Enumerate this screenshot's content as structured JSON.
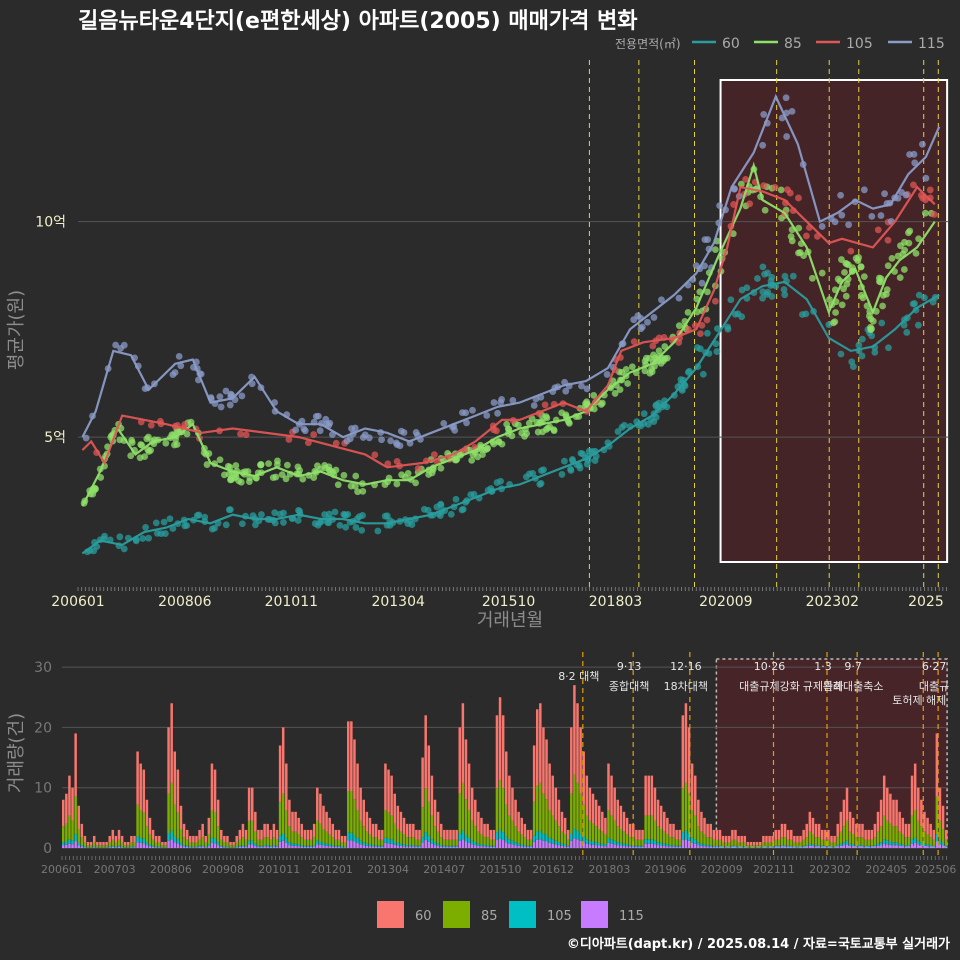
{
  "title": "길음뉴타운4단지(e편한세상) 아파트(2005) 매매가격 변화",
  "credit": "©디아파트(dapt.kr) / 2025.08.14 / 자료=국토교통부 실거래가",
  "colors": {
    "60": "#2a9d9e",
    "85": "#8fe06a",
    "105": "#e05555",
    "115": "#8a9bc8",
    "bar60": "#f8766d",
    "bar85": "#7cae00",
    "bar105": "#00bfc4",
    "bar115": "#c77cff",
    "policy": "#e6d23c",
    "highlight_fill": "#5a1f24",
    "grid": "#555555"
  },
  "chart_data": [
    {
      "type": "line",
      "ylabel": "평균가(원)",
      "xlabel": "거래년월",
      "y_ticks": [
        {
          "value": 5,
          "label": "5억"
        },
        {
          "value": 10,
          "label": "10억"
        }
      ],
      "ylim": [
        1.5,
        13.4
      ],
      "x_ticks": [
        "200601",
        "200806",
        "201011",
        "201304",
        "201510",
        "201803",
        "202009",
        "202302",
        "2025"
      ],
      "legend_title": "전용면적(㎡)",
      "series": [
        {
          "name": "60",
          "points": [
            [
              2006.1,
              2.3
            ],
            [
              2006.5,
              2.6
            ],
            [
              2007.0,
              2.5
            ],
            [
              2007.5,
              2.8
            ],
            [
              2008.0,
              2.9
            ],
            [
              2008.5,
              3.1
            ],
            [
              2009.0,
              3.0
            ],
            [
              2009.5,
              3.2
            ],
            [
              2010.0,
              3.1
            ],
            [
              2010.5,
              3.1
            ],
            [
              2011.0,
              3.2
            ],
            [
              2011.5,
              3.1
            ],
            [
              2012.0,
              3.1
            ],
            [
              2012.5,
              3.0
            ],
            [
              2013.0,
              3.0
            ],
            [
              2013.5,
              3.1
            ],
            [
              2014.0,
              3.2
            ],
            [
              2014.5,
              3.4
            ],
            [
              2015.0,
              3.6
            ],
            [
              2015.5,
              3.8
            ],
            [
              2016.0,
              3.9
            ],
            [
              2016.5,
              4.1
            ],
            [
              2017.0,
              4.3
            ],
            [
              2017.5,
              4.5
            ],
            [
              2018.0,
              4.8
            ],
            [
              2018.5,
              5.2
            ],
            [
              2019.0,
              5.5
            ],
            [
              2019.5,
              6.0
            ],
            [
              2020.0,
              6.6
            ],
            [
              2020.5,
              7.4
            ],
            [
              2021.0,
              8.2
            ],
            [
              2021.5,
              8.5
            ],
            [
              2022.0,
              8.6
            ],
            [
              2022.5,
              8.2
            ],
            [
              2023.0,
              7.3
            ],
            [
              2023.5,
              7.0
            ],
            [
              2024.0,
              7.1
            ],
            [
              2024.5,
              7.5
            ],
            [
              2025.0,
              8.0
            ],
            [
              2025.5,
              8.3
            ]
          ]
        },
        {
          "name": "85",
          "points": [
            [
              2006.1,
              3.4
            ],
            [
              2006.5,
              4.2
            ],
            [
              2006.9,
              5.2
            ],
            [
              2007.3,
              4.6
            ],
            [
              2007.7,
              4.9
            ],
            [
              2008.2,
              5.0
            ],
            [
              2008.6,
              5.3
            ],
            [
              2009.0,
              4.4
            ],
            [
              2009.5,
              4.2
            ],
            [
              2010.0,
              4.1
            ],
            [
              2010.5,
              4.3
            ],
            [
              2011.0,
              4.1
            ],
            [
              2011.5,
              4.2
            ],
            [
              2012.0,
              4.0
            ],
            [
              2012.5,
              3.9
            ],
            [
              2013.0,
              4.0
            ],
            [
              2013.5,
              4.0
            ],
            [
              2014.0,
              4.3
            ],
            [
              2014.5,
              4.5
            ],
            [
              2015.0,
              4.7
            ],
            [
              2015.5,
              5.0
            ],
            [
              2016.0,
              5.2
            ],
            [
              2016.5,
              5.3
            ],
            [
              2017.0,
              5.4
            ],
            [
              2017.5,
              5.6
            ],
            [
              2018.0,
              6.1
            ],
            [
              2018.5,
              6.5
            ],
            [
              2019.0,
              6.7
            ],
            [
              2019.5,
              7.2
            ],
            [
              2020.0,
              8.0
            ],
            [
              2020.5,
              9.2
            ],
            [
              2021.0,
              10.3
            ],
            [
              2021.3,
              11.3
            ],
            [
              2021.5,
              10.5
            ],
            [
              2022.0,
              10.2
            ],
            [
              2022.5,
              9.4
            ],
            [
              2023.0,
              7.9
            ],
            [
              2023.3,
              8.6
            ],
            [
              2023.6,
              8.9
            ],
            [
              2024.0,
              7.9
            ],
            [
              2024.3,
              8.7
            ],
            [
              2024.6,
              9.1
            ],
            [
              2025.0,
              9.4
            ],
            [
              2025.4,
              10.0
            ]
          ]
        },
        {
          "name": "105",
          "points": [
            [
              2006.1,
              4.7
            ],
            [
              2006.3,
              4.9
            ],
            [
              2006.6,
              4.4
            ],
            [
              2007.0,
              5.5
            ],
            [
              2008.0,
              5.3
            ],
            [
              2008.8,
              5.1
            ],
            [
              2009.5,
              5.2
            ],
            [
              2011.0,
              5.0
            ],
            [
              2012.5,
              4.6
            ],
            [
              2013.0,
              4.3
            ],
            [
              2013.8,
              4.4
            ],
            [
              2014.5,
              4.6
            ],
            [
              2015.0,
              4.9
            ],
            [
              2015.6,
              5.4
            ],
            [
              2016.0,
              5.4
            ],
            [
              2016.5,
              5.6
            ],
            [
              2017.0,
              5.8
            ],
            [
              2017.5,
              5.6
            ],
            [
              2018.0,
              6.2
            ],
            [
              2018.3,
              7.0
            ],
            [
              2018.8,
              7.2
            ],
            [
              2019.5,
              7.3
            ],
            [
              2020.0,
              7.5
            ],
            [
              2020.4,
              8.4
            ],
            [
              2020.7,
              9.4
            ],
            [
              2021.0,
              10.8
            ],
            [
              2021.5,
              10.7
            ],
            [
              2022.0,
              10.5
            ],
            [
              2023.0,
              9.5
            ],
            [
              2023.3,
              9.6
            ],
            [
              2024.0,
              9.4
            ],
            [
              2024.5,
              10.0
            ],
            [
              2025.0,
              10.8
            ],
            [
              2025.4,
              10.4
            ]
          ]
        },
        {
          "name": "115",
          "points": [
            [
              2006.1,
              5.0
            ],
            [
              2006.4,
              5.6
            ],
            [
              2006.8,
              7.0
            ],
            [
              2007.2,
              6.9
            ],
            [
              2007.6,
              6.1
            ],
            [
              2008.2,
              6.7
            ],
            [
              2008.6,
              6.8
            ],
            [
              2009.0,
              5.8
            ],
            [
              2009.5,
              5.9
            ],
            [
              2010.0,
              6.4
            ],
            [
              2010.5,
              5.6
            ],
            [
              2011.0,
              5.3
            ],
            [
              2011.5,
              5.3
            ],
            [
              2012.0,
              5.0
            ],
            [
              2012.5,
              5.2
            ],
            [
              2013.0,
              5.1
            ],
            [
              2013.5,
              4.9
            ],
            [
              2014.0,
              5.1
            ],
            [
              2014.5,
              5.3
            ],
            [
              2015.0,
              5.5
            ],
            [
              2015.5,
              5.7
            ],
            [
              2016.0,
              5.8
            ],
            [
              2016.5,
              6.0
            ],
            [
              2017.0,
              6.2
            ],
            [
              2017.5,
              6.3
            ],
            [
              2018.0,
              6.6
            ],
            [
              2018.5,
              7.5
            ],
            [
              2019.0,
              7.9
            ],
            [
              2019.5,
              8.3
            ],
            [
              2020.0,
              8.8
            ],
            [
              2020.4,
              9.5
            ],
            [
              2020.8,
              10.8
            ],
            [
              2021.3,
              11.6
            ],
            [
              2021.8,
              12.9
            ],
            [
              2022.3,
              11.8
            ],
            [
              2022.8,
              10.0
            ],
            [
              2023.2,
              10.2
            ],
            [
              2023.6,
              10.5
            ],
            [
              2024.0,
              10.3
            ],
            [
              2024.4,
              10.4
            ],
            [
              2024.8,
              11.1
            ],
            [
              2025.2,
              11.5
            ],
            [
              2025.5,
              12.2
            ]
          ]
        }
      ]
    },
    {
      "type": "bar",
      "stacked": true,
      "ylabel": "거래량(건)",
      "ylim": [
        0,
        32
      ],
      "y_ticks": [
        0,
        10,
        20,
        30
      ],
      "x_ticks": [
        "200601",
        "200703",
        "200806",
        "200908",
        "201011",
        "201201",
        "201304",
        "201407",
        "201510",
        "201612",
        "201803",
        "201906",
        "202009",
        "202111",
        "202302",
        "202405",
        "202506"
      ],
      "legend": [
        "60",
        "85",
        "105",
        "115"
      ],
      "monthly_totals": [
        8,
        9,
        12,
        10,
        19,
        7,
        4,
        2,
        1,
        1,
        2,
        1,
        1,
        1,
        1,
        2,
        3,
        2,
        3,
        2,
        1,
        1,
        2,
        2,
        16,
        14,
        13,
        8,
        5,
        3,
        2,
        2,
        1,
        1,
        20,
        24,
        16,
        13,
        7,
        4,
        3,
        2,
        2,
        2,
        3,
        4,
        2,
        5,
        14,
        13,
        8,
        3,
        2,
        2,
        1,
        1,
        2,
        3,
        4,
        3,
        10,
        10,
        6,
        3,
        3,
        4,
        4,
        3,
        4,
        3,
        17,
        20,
        14,
        8,
        6,
        6,
        5,
        4,
        3,
        3,
        3,
        4,
        10,
        9,
        7,
        6,
        5,
        4,
        3,
        3,
        2,
        2,
        21,
        21,
        18,
        14,
        10,
        8,
        6,
        5,
        4,
        4,
        3,
        3,
        14,
        13,
        12,
        9,
        7,
        6,
        5,
        4,
        4,
        4,
        3,
        3,
        15,
        22,
        17,
        12,
        8,
        6,
        4,
        3,
        3,
        3,
        3,
        3,
        20,
        24,
        18,
        14,
        10,
        8,
        6,
        5,
        4,
        4,
        3,
        3,
        22,
        25,
        22,
        16,
        12,
        10,
        8,
        6,
        5,
        4,
        3,
        3,
        17,
        23,
        24,
        20,
        18,
        14,
        12,
        10,
        8,
        6,
        5,
        3,
        20,
        27,
        24,
        20,
        16,
        12,
        10,
        9,
        8,
        7,
        6,
        5,
        14,
        12,
        10,
        8,
        7,
        6,
        5,
        4,
        4,
        3,
        3,
        3,
        12,
        12,
        12,
        10,
        8,
        7,
        6,
        5,
        4,
        4,
        3,
        3,
        22,
        24,
        20,
        14,
        12,
        8,
        6,
        5,
        4,
        4,
        3,
        3,
        3,
        2,
        2,
        2,
        3,
        3,
        2,
        2,
        2,
        1,
        1,
        1,
        1,
        1,
        2,
        2,
        2,
        2,
        3,
        3,
        4,
        4,
        3,
        3,
        2,
        2,
        2,
        3,
        4,
        6,
        5,
        4,
        4,
        3,
        3,
        3,
        2,
        2,
        4,
        6,
        8,
        10,
        6,
        5,
        4,
        4,
        4,
        3,
        3,
        3,
        4,
        6,
        8,
        12,
        10,
        9,
        8,
        8,
        6,
        5,
        4,
        4,
        12,
        14,
        10,
        8,
        6,
        5,
        4,
        3,
        19,
        10,
        7,
        3
      ],
      "annotations": [
        {
          "date": "8·2 대책",
          "pos": 2017.58
        },
        {
          "date": "9·13",
          "label": "종합대책",
          "pos": 2018.7
        },
        {
          "date": "12·16",
          "label": "18차대책",
          "pos": 2019.96
        },
        {
          "date": "10·26",
          "label": "대출규제강화",
          "pos": 2021.82
        },
        {
          "date": "1·3",
          "label": "규제완화",
          "pos": 2023.01
        },
        {
          "date": "9·7",
          "label": "특례대출축소",
          "pos": 2023.68
        },
        {
          "date": "",
          "label": "토허제 해제",
          "pos": 2025.15
        },
        {
          "date": "6·27",
          "label": "대출규",
          "pos": 2025.48
        }
      ]
    }
  ]
}
